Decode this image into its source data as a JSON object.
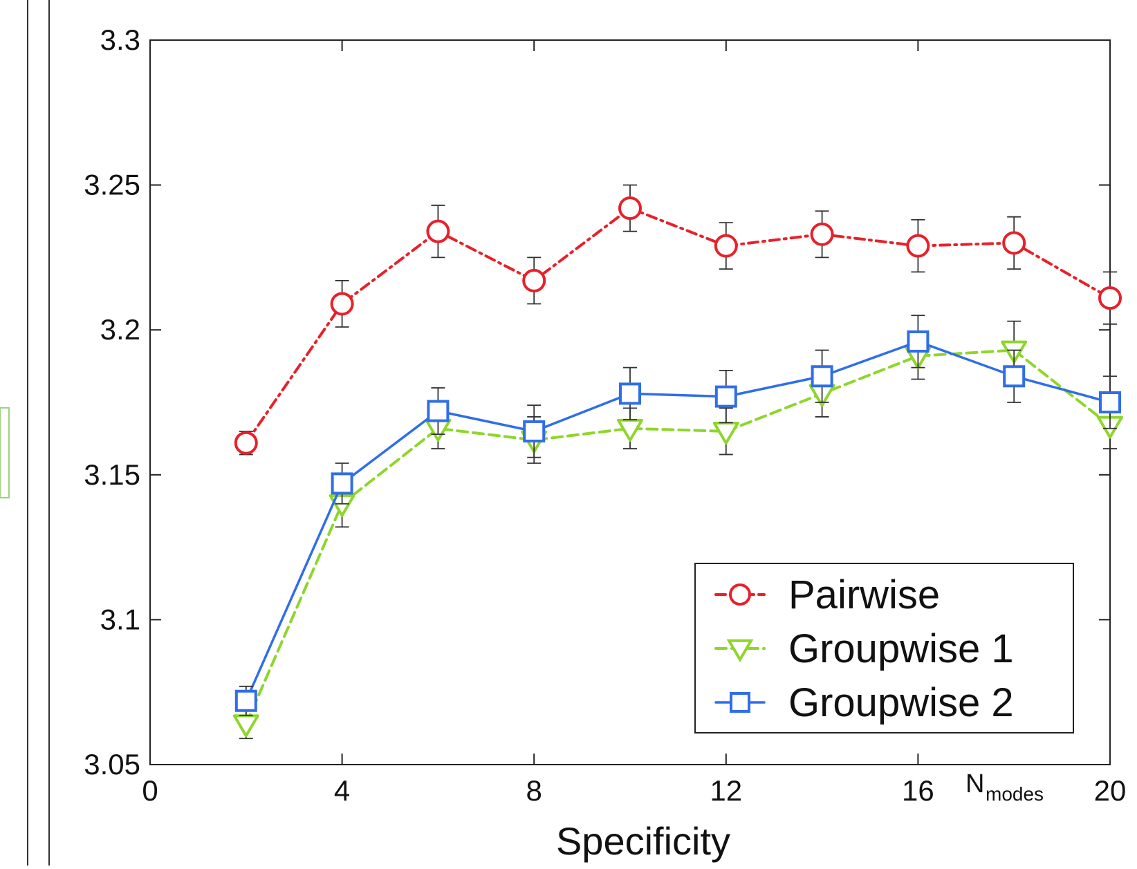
{
  "chart_data": {
    "type": "line",
    "title": "",
    "xlabel": "Specificity",
    "ylabel": "",
    "x_annotation_main": "N",
    "x_annotation_sub": "modes",
    "xlim": [
      0,
      20
    ],
    "ylim": [
      3.05,
      3.3
    ],
    "x_ticks": [
      0,
      4,
      8,
      12,
      16,
      20
    ],
    "y_ticks": [
      3.05,
      3.1,
      3.15,
      3.2,
      3.25,
      3.3
    ],
    "x_tick_labels": [
      "0",
      "4",
      "8",
      "12",
      "16",
      "20"
    ],
    "y_tick_labels": [
      "3.05",
      "3.1",
      "3.15",
      "3.2",
      "3.25",
      "3.3"
    ],
    "grid": false,
    "legend_position": "bottom-right",
    "x": [
      2,
      4,
      6,
      8,
      10,
      12,
      14,
      16,
      18,
      20
    ],
    "series": [
      {
        "name": "Pairwise",
        "color": "#e8202a",
        "marker": "circle",
        "line_style": "dash-dot",
        "values": [
          3.161,
          3.209,
          3.234,
          3.217,
          3.242,
          3.229,
          3.233,
          3.229,
          3.23,
          3.211
        ],
        "errors": [
          0.004,
          0.008,
          0.009,
          0.008,
          0.008,
          0.008,
          0.008,
          0.009,
          0.009,
          0.009
        ]
      },
      {
        "name": "Groupwise 1",
        "color": "#8ed62b",
        "marker": "triangle-down",
        "line_style": "dashed",
        "values": [
          3.064,
          3.14,
          3.166,
          3.162,
          3.166,
          3.165,
          3.178,
          3.191,
          3.193,
          3.167
        ],
        "errors": [
          0.005,
          0.008,
          0.007,
          0.008,
          0.007,
          0.008,
          0.008,
          0.008,
          0.01,
          0.008
        ]
      },
      {
        "name": "Groupwise 2",
        "color": "#2f6ee8",
        "marker": "square",
        "line_style": "solid",
        "values": [
          3.072,
          3.147,
          3.172,
          3.165,
          3.178,
          3.177,
          3.184,
          3.196,
          3.184,
          3.175
        ],
        "errors": [
          0.005,
          0.007,
          0.008,
          0.009,
          0.009,
          0.009,
          0.009,
          0.009,
          0.009,
          0.009
        ]
      }
    ]
  }
}
